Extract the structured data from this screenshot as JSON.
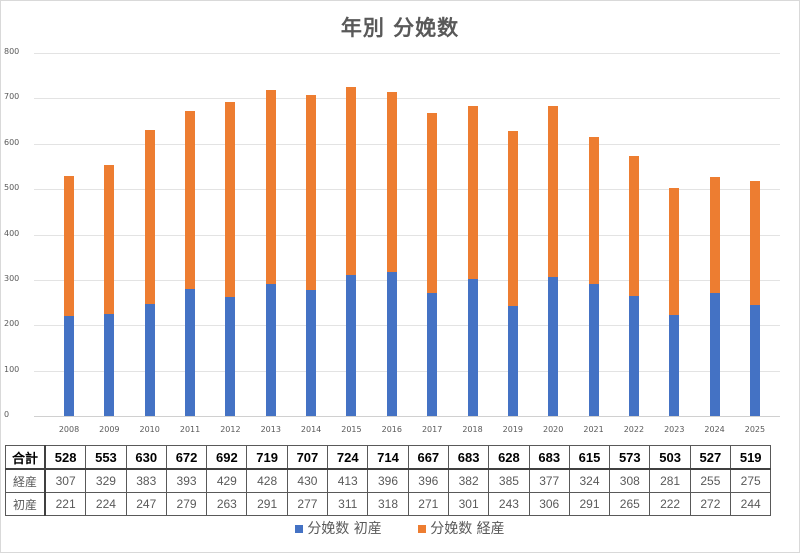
{
  "chart_data": {
    "type": "bar",
    "stacked": true,
    "title": "年別 分娩数",
    "xlabel": "",
    "ylabel": "",
    "ylim": [
      0,
      800
    ],
    "yticks": [
      0,
      100,
      200,
      300,
      400,
      500,
      600,
      700,
      800
    ],
    "grid": true,
    "legend_position": "bottom",
    "categories": [
      "2008",
      "2009",
      "2010",
      "2011",
      "2012",
      "2013",
      "2014",
      "2015",
      "2016",
      "2017",
      "2018",
      "2019",
      "2020",
      "2021",
      "2022",
      "2023",
      "2024",
      "2025"
    ],
    "series": [
      {
        "name": "分娩数 初産",
        "color": "#4472C4",
        "values": [
          221,
          224,
          247,
          279,
          263,
          291,
          277,
          311,
          318,
          271,
          301,
          243,
          306,
          291,
          265,
          222,
          272,
          244
        ]
      },
      {
        "name": "分娩数 経産",
        "color": "#ED7D31",
        "values": [
          307,
          329,
          383,
          393,
          429,
          428,
          430,
          413,
          396,
          396,
          382,
          385,
          377,
          324,
          308,
          281,
          255,
          275
        ]
      }
    ],
    "totals": [
      528,
      553,
      630,
      672,
      692,
      719,
      707,
      724,
      714,
      667,
      683,
      628,
      683,
      615,
      573,
      503,
      527,
      519
    ]
  },
  "table": {
    "rows": [
      {
        "label": "合計",
        "values": [
          "528",
          "553",
          "630",
          "672",
          "692",
          "719",
          "707",
          "724",
          "714",
          "667",
          "683",
          "628",
          "683",
          "615",
          "573",
          "503",
          "527",
          "519"
        ]
      },
      {
        "label": "経産",
        "values": [
          "307",
          "329",
          "383",
          "393",
          "429",
          "428",
          "430",
          "413",
          "396",
          "396",
          "382",
          "385",
          "377",
          "324",
          "308",
          "281",
          "255",
          "275"
        ]
      },
      {
        "label": "初産",
        "values": [
          "221",
          "224",
          "247",
          "279",
          "263",
          "291",
          "277",
          "311",
          "318",
          "271",
          "301",
          "243",
          "306",
          "291",
          "265",
          "222",
          "272",
          "244"
        ]
      }
    ]
  },
  "legend": {
    "items": [
      {
        "label": "分娩数 初産",
        "color": "#4472C4"
      },
      {
        "label": "分娩数 経産",
        "color": "#ED7D31"
      }
    ]
  }
}
